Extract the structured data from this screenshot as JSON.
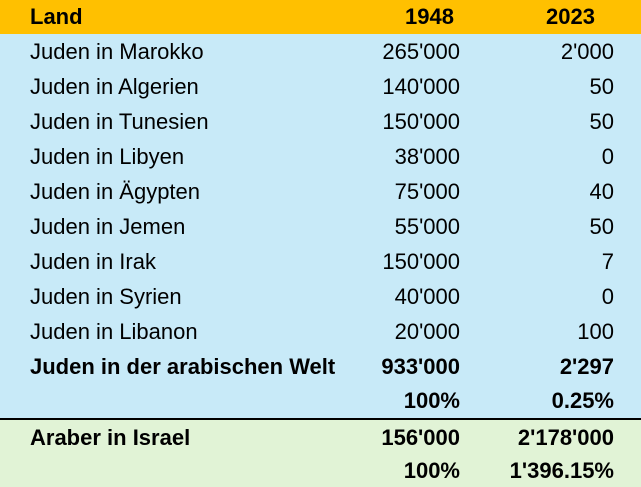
{
  "colors": {
    "header_bg": "#ffc000",
    "jews_section_bg": "#c8eaf8",
    "arabs_section_bg": "#e1f3d6"
  },
  "header": {
    "land": "Land",
    "y1948": "1948",
    "y2023": "2023"
  },
  "rows": [
    {
      "land": "Juden in Marokko",
      "y1948": "265'000",
      "y2023": "2'000"
    },
    {
      "land": "Juden in Algerien",
      "y1948": "140'000",
      "y2023": "50"
    },
    {
      "land": "Juden in Tunesien",
      "y1948": "150'000",
      "y2023": "50"
    },
    {
      "land": "Juden in Libyen",
      "y1948": "38'000",
      "y2023": "0"
    },
    {
      "land": "Juden in Ägypten",
      "y1948": "75'000",
      "y2023": "40"
    },
    {
      "land": "Juden in Jemen",
      "y1948": "55'000",
      "y2023": "50"
    },
    {
      "land": "Juden in Irak",
      "y1948": "150'000",
      "y2023": "7"
    },
    {
      "land": "Juden in Syrien",
      "y1948": "40'000",
      "y2023": "0"
    },
    {
      "land": "Juden in Libanon",
      "y1948": "20'000",
      "y2023": "100"
    }
  ],
  "total_jews": {
    "land": "Juden in der arabischen Welt",
    "y1948": "933'000",
    "y2023": "2'297"
  },
  "total_jews_pct": {
    "y1948": "100%",
    "y2023": "0.25%"
  },
  "arabs_israel": {
    "land": "Araber in Israel",
    "y1948": "156'000",
    "y2023": "2'178'000"
  },
  "arabs_israel_pct": {
    "y1948": "100%",
    "y2023": "1'396.15%"
  }
}
